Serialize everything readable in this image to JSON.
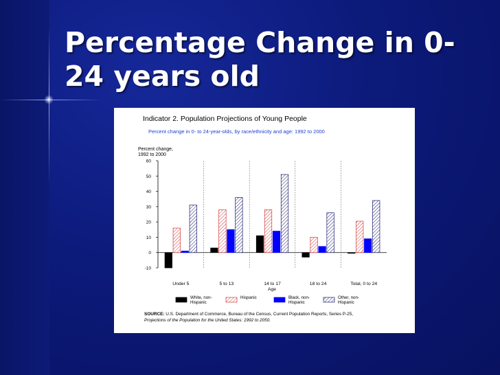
{
  "slide": {
    "title": "Percentage Change in 0-24 years old"
  },
  "figure": {
    "title": "Indicator 2. Population Projections of Young People",
    "subtitle": "Percent change in 0- to 24-year-olds, by race/ethnicity and age: 1992 to 2000",
    "source_label": "SOURCE:",
    "source_line1": "U.S. Department of Commerce, Bureau of the Census, Current Population Reports, Series P-25,",
    "source_line2": "Projections of the Population for the United States: 1992 to 2050."
  },
  "chart_data": {
    "type": "bar",
    "ylabel": "Percent change, 1992 to 2000",
    "ylabel_lines": [
      "Percent change,",
      "1992 to 2000"
    ],
    "xlabel": "Age",
    "ylim": [
      -10,
      60
    ],
    "yticks": [
      -10,
      0,
      10,
      20,
      30,
      40,
      50,
      60
    ],
    "ytick_labels": [
      "-10",
      "0",
      "10",
      "20",
      "30",
      "40",
      "50",
      "60"
    ],
    "categories": [
      "Under 5",
      "5 to 13",
      "14 to 17",
      "18 to 24",
      "Total, 0 to 24"
    ],
    "series": [
      {
        "name": "White, non-Hispanic",
        "label_lines": [
          "White, non-",
          "Hispanic"
        ],
        "pattern": "solid-black",
        "values": [
          -10,
          3,
          11,
          -3,
          -0.5
        ]
      },
      {
        "name": "Hispanic",
        "label_lines": [
          "Hispanic"
        ],
        "pattern": "hatch-red",
        "values": [
          16,
          28,
          28,
          10,
          20.5
        ]
      },
      {
        "name": "Black, non-Hispanic",
        "label_lines": [
          "Black, non-",
          "Hispanic"
        ],
        "pattern": "solid-blue",
        "values": [
          1,
          15,
          14,
          4,
          9
        ]
      },
      {
        "name": "Other, non-Hispanic",
        "label_lines": [
          "Other, non-",
          "Hispanic"
        ],
        "pattern": "hatch-navy",
        "values": [
          31,
          36,
          51,
          26,
          34
        ]
      }
    ],
    "grid": false,
    "legend_position": "bottom",
    "colors": {
      "white_nonhispanic": "#000000",
      "hispanic": "#d23a3a",
      "black_nonhispanic": "#0000ff",
      "other_nonhispanic": "#1a1a6e"
    }
  }
}
